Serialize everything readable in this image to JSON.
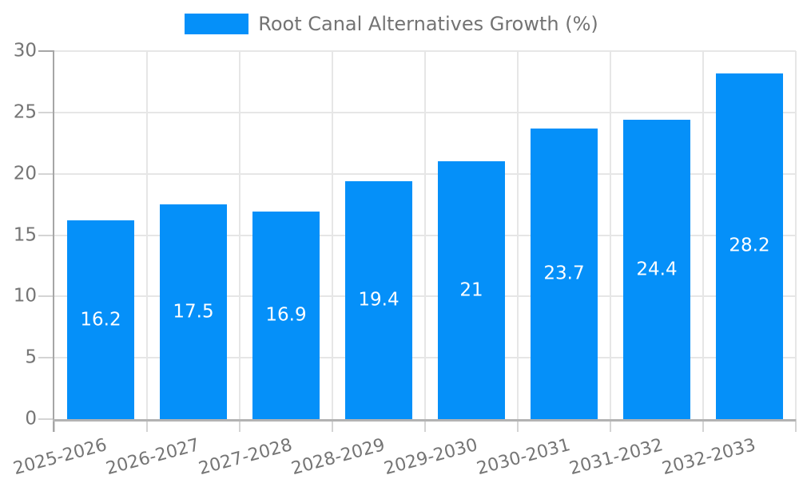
{
  "chart_data": {
    "type": "bar",
    "title": "Root Canal Alternatives Growth (%)",
    "legend": [
      "Root Canal Alternatives Growth (%)"
    ],
    "legend_position": "top",
    "categories": [
      "2025-2026",
      "2026-2027",
      "2027-2028",
      "2028-2029",
      "2029-2030",
      "2030-2031",
      "2031-2032",
      "2032-2033"
    ],
    "values": [
      16.2,
      17.5,
      16.9,
      19.4,
      21,
      23.7,
      24.4,
      28.2
    ],
    "value_labels": [
      "16.2",
      "17.5",
      "16.9",
      "19.4",
      "21",
      "23.7",
      "24.4",
      "28.2"
    ],
    "xlabel": "",
    "ylabel": "",
    "ylim": [
      0,
      30
    ],
    "yticks": [
      0,
      5,
      10,
      15,
      20,
      25,
      30
    ],
    "grid": true,
    "x_tick_rotation_deg": -15,
    "colors": {
      "bar": "#0590f9",
      "bar_value_label": "#ffffff",
      "axis_text": "#757575",
      "legend_text": "#737373",
      "gridline": "#e6e6e6",
      "tick_mark": "#d4d4d4",
      "y_axis_line": "#a6a6a6",
      "x_axis_line": "#b3b3b3",
      "background": "#ffffff"
    }
  }
}
